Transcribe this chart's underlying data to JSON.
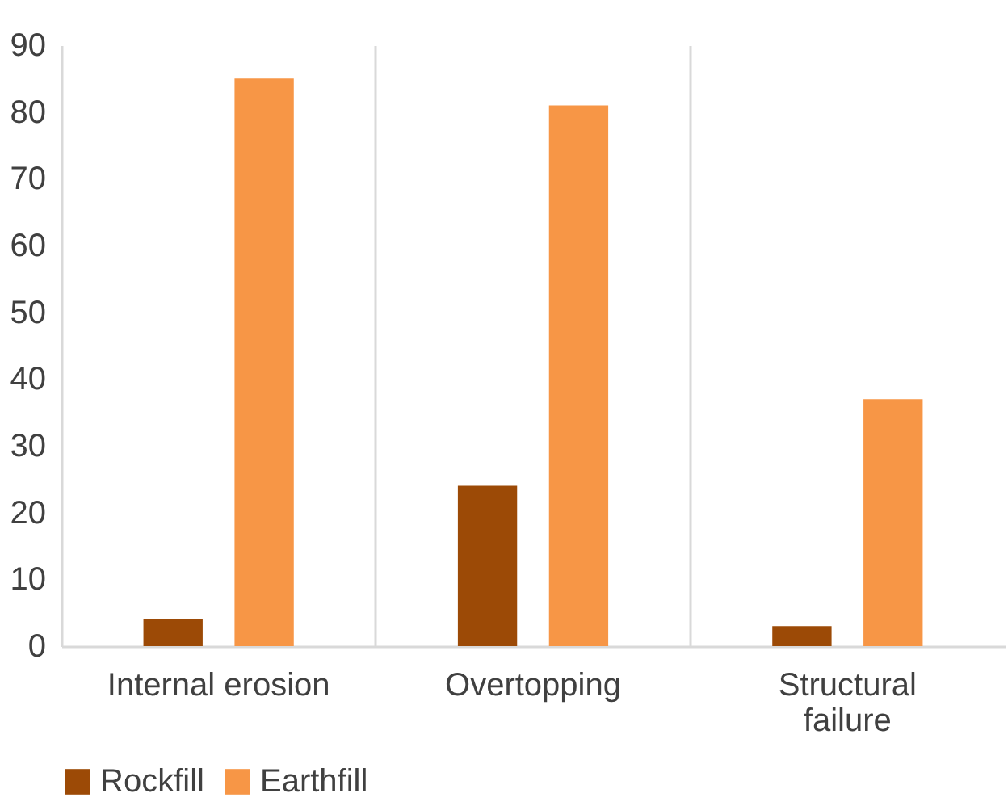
{
  "chart_data": {
    "type": "bar",
    "categories": [
      "Internal erosion",
      "Overtopping",
      "Structural failure"
    ],
    "series": [
      {
        "name": "Rockfill",
        "color": "#9c4a06",
        "values": [
          4,
          24,
          3
        ]
      },
      {
        "name": "Earthfill",
        "color": "#f79646",
        "values": [
          85,
          81,
          37
        ]
      }
    ],
    "ylim": [
      0,
      90
    ],
    "yticks": [
      0,
      10,
      20,
      30,
      40,
      50,
      60,
      70,
      80,
      90
    ],
    "grid": "x",
    "legend": "bottom"
  }
}
